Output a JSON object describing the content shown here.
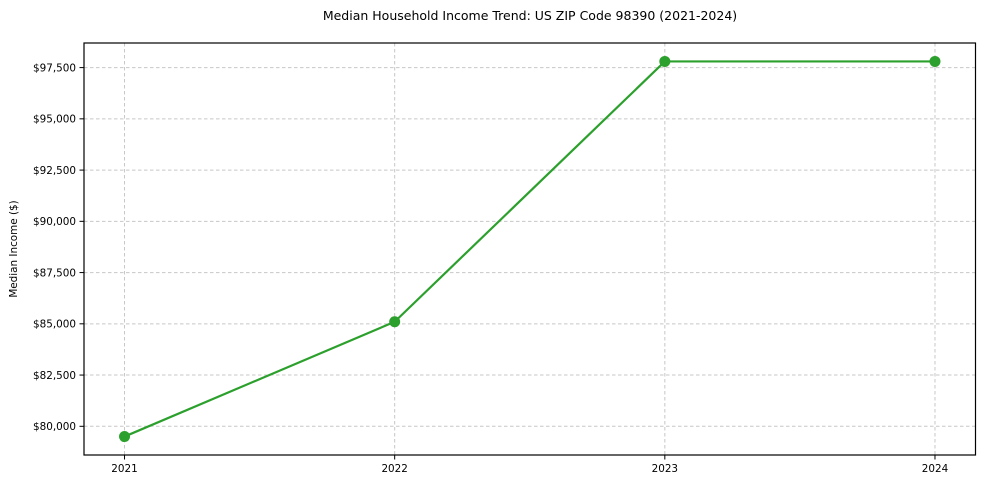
{
  "page": {
    "background": "#ffffff"
  },
  "chart_data": {
    "type": "line",
    "title": "Median Household Income Trend: US ZIP Code 98390 (2021-2024)",
    "xlabel": "",
    "ylabel": "Median Income ($)",
    "x": [
      2021,
      2022,
      2023,
      2024
    ],
    "xtick_labels": [
      "2021",
      "2022",
      "2023",
      "2024"
    ],
    "series": [
      {
        "name": "Median Income ($)",
        "values": [
          79500,
          85100,
          97800,
          97800
        ],
        "color": "#2ca02c",
        "marker": "circle"
      }
    ],
    "yticks": [
      80000,
      82500,
      85000,
      87500,
      90000,
      92500,
      95000,
      97500
    ],
    "ytick_labels": [
      "$80,000",
      "$82,500",
      "$85,000",
      "$87,500",
      "$90,000",
      "$92,500",
      "$95,000",
      "$97,500"
    ],
    "ylim": [
      78600,
      98700
    ],
    "x_margin_fraction": 0.05,
    "grid": true,
    "grid_style": "dashed",
    "legend_position": "none",
    "colors": {
      "line": "#2ca02c",
      "grid": "#c7c7c7",
      "axis": "#000000",
      "text": "#000000",
      "background": "#ffffff"
    }
  }
}
